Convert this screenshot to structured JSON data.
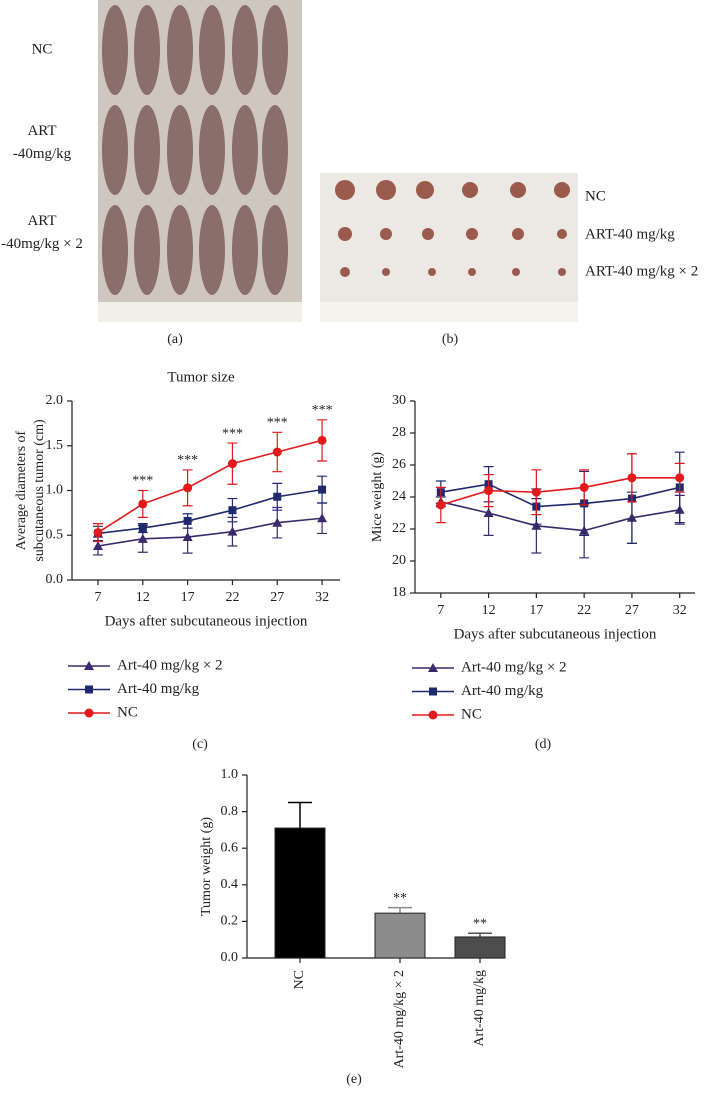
{
  "photos": [
    {
      "label": "(a)",
      "rows": [
        [
          "NC"
        ],
        [
          "ART",
          "-40mg/kg"
        ],
        [
          "ART",
          "-40mg/kg × 2"
        ]
      ]
    },
    {
      "label": "(b)",
      "rows": [
        [
          "NC"
        ],
        [
          "ART-40 mg/kg"
        ],
        [
          "ART-40 mg/kg × 2"
        ]
      ]
    }
  ],
  "chart_data": [
    {
      "type": "line",
      "label": "(c)",
      "title": "Tumor size",
      "xlabel": "Days after subcutaneous injection",
      "ylabel": [
        "Average diameters of",
        "subcutaneous tumor (cm)"
      ],
      "x": [
        7,
        12,
        17,
        22,
        27,
        32
      ],
      "xlim": [
        4.1,
        34
      ],
      "xticks": [
        7,
        12,
        17,
        22,
        27,
        32
      ],
      "ylim": [
        0,
        2
      ],
      "yticks": [
        {
          "value": 0,
          "label": "0.0"
        },
        {
          "value": 0.5,
          "label": "0.5"
        },
        {
          "value": 1,
          "label": "1.0"
        },
        {
          "value": 1.5,
          "label": "1.5"
        },
        {
          "value": 2,
          "label": "2.0"
        }
      ],
      "series": [
        {
          "name": "Art-40 mg/kg × 2",
          "color": "#3b2a6b",
          "marker": "triangle",
          "values": [
            0.38,
            0.46,
            0.48,
            0.54,
            0.64,
            0.69
          ],
          "errors": [
            0.1,
            0.15,
            0.18,
            0.16,
            0.17,
            0.17
          ]
        },
        {
          "name": "Art-40 mg/kg",
          "color": "#1f2a6e",
          "marker": "square",
          "values": [
            0.52,
            0.58,
            0.66,
            0.78,
            0.93,
            1.01
          ],
          "errors": [
            0.08,
            0.05,
            0.08,
            0.13,
            0.15,
            0.15
          ]
        },
        {
          "name": "NC",
          "color": "#e31a1c",
          "marker": "circle",
          "values": [
            0.53,
            0.85,
            1.03,
            1.3,
            1.43,
            1.56
          ],
          "errors": [
            0.1,
            0.15,
            0.2,
            0.23,
            0.22,
            0.23
          ]
        }
      ],
      "annotations": [
        {
          "x": 12,
          "text": "***"
        },
        {
          "x": 17,
          "text": "***"
        },
        {
          "x": 22,
          "text": "***"
        },
        {
          "x": 27,
          "text": "***"
        },
        {
          "x": 32,
          "text": "***"
        }
      ]
    },
    {
      "type": "line",
      "label": "(d)",
      "xlabel": "Days after subcutaneous injection",
      "ylabel": [
        "Mice weight (g)"
      ],
      "x": [
        7,
        12,
        17,
        22,
        27,
        32
      ],
      "xlim": [
        4.3,
        33.6
      ],
      "xticks": [
        7,
        12,
        17,
        22,
        27,
        32
      ],
      "ylim": [
        18,
        30
      ],
      "yticks": [
        18,
        20,
        22,
        24,
        26,
        28,
        30
      ],
      "series": [
        {
          "name": "Art-40 mg/kg × 2",
          "color": "#3b2a6b",
          "marker": "triangle",
          "values": [
            23.7,
            23.0,
            22.2,
            21.9,
            22.7,
            23.2
          ],
          "errors": [
            0.3,
            1.4,
            1.7,
            1.7,
            1.6,
            0.9
          ]
        },
        {
          "name": "Art-40 mg/kg",
          "color": "#1f2a6e",
          "marker": "square",
          "values": [
            24.3,
            24.8,
            23.4,
            23.6,
            23.9,
            24.6
          ],
          "errors": [
            0.7,
            1.1,
            1.1,
            2.0,
            2.8,
            2.2
          ]
        },
        {
          "name": "NC",
          "color": "#e31a1c",
          "marker": "circle",
          "values": [
            23.5,
            24.4,
            24.3,
            24.6,
            25.2,
            25.2
          ],
          "errors": [
            1.1,
            1.0,
            1.4,
            1.1,
            1.5,
            0.9
          ]
        }
      ]
    },
    {
      "type": "bar",
      "label": "(e)",
      "ylabel": [
        "Tumor weight (g)"
      ],
      "categories": [
        "NC",
        "Art-40 mg/kg × 2",
        "Art-40 mg/kg"
      ],
      "values": [
        0.71,
        0.245,
        0.115
      ],
      "errors": [
        0.14,
        0.03,
        0.02
      ],
      "colors": [
        "#000000",
        "#8c8c8c",
        "#4d4d4d"
      ],
      "value_annotations": [
        null,
        "**",
        "**"
      ],
      "ylim": [
        0,
        1
      ],
      "yticks": [
        {
          "value": 0,
          "label": "0.0"
        },
        {
          "value": 0.2,
          "label": "0.2"
        },
        {
          "value": 0.4,
          "label": "0.4"
        },
        {
          "value": 0.6,
          "label": "0.6"
        },
        {
          "value": 0.8,
          "label": "0.8"
        },
        {
          "value": 1,
          "label": "1.0"
        }
      ]
    }
  ]
}
